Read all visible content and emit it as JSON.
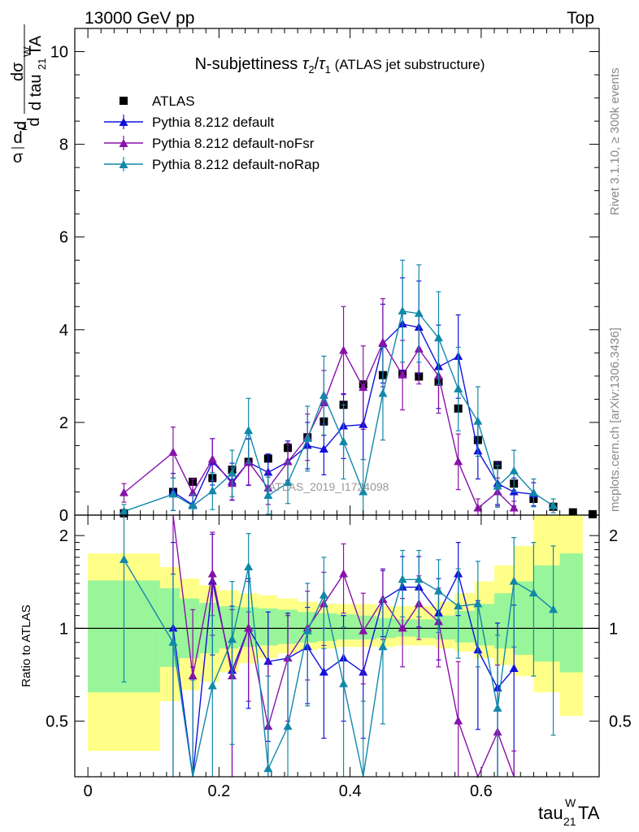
{
  "header": {
    "left": "13000 GeV pp",
    "right": "Top",
    "side_rivet": "Rivet 3.1.10, ≥ 300k events",
    "side_mcplots": "mcplots.cern.ch [arXiv:1306.3436]",
    "watermark": "ATLAS_2019_I1724098"
  },
  "chart_data": [
    {
      "panel": "main",
      "type": "scatter",
      "title": "N-subjettiness τ₂/τ₁ (ATLAS jet substructure)",
      "title_main": "N-subjettiness ",
      "title_suffix": " (ATLAS jet substructure)",
      "ylabel": "(1/σ) dσ/d tau21WTA",
      "xlabel": "tau21WTA",
      "xlim": [
        -0.02,
        0.78
      ],
      "ylim": [
        0,
        10.5
      ],
      "yticks": [
        "0",
        "2",
        "4",
        "6",
        "8",
        "10"
      ],
      "x": [
        0.055,
        0.13,
        0.16,
        0.19,
        0.22,
        0.245,
        0.275,
        0.305,
        0.335,
        0.36,
        0.39,
        0.42,
        0.45,
        0.48,
        0.505,
        0.535,
        0.565,
        0.595,
        0.625,
        0.65,
        0.68,
        0.71,
        0.74,
        0.77
      ],
      "series": [
        {
          "name": "ATLAS",
          "color": "#000000",
          "marker": "square",
          "values": [
            0.04,
            0.5,
            0.72,
            0.8,
            0.98,
            1.15,
            1.22,
            1.45,
            1.68,
            2.02,
            2.38,
            2.82,
            3.02,
            3.05,
            2.99,
            2.88,
            2.3,
            1.62,
            1.08,
            0.68,
            0.35,
            0.18,
            0.06,
            0.02
          ]
        },
        {
          "name": "Pythia 8.212 default",
          "color": "#1010dd",
          "marker": "triangle",
          "values": [
            null,
            0.5,
            0.22,
            1.15,
            0.72,
            1.14,
            0.92,
            1.15,
            1.5,
            1.42,
            1.92,
            1.95,
            3.7,
            4.12,
            4.05,
            3.2,
            3.42,
            1.38,
            0.68,
            0.5,
            0.45,
            null,
            null,
            null
          ],
          "errors": [
            null,
            0.4,
            0.25,
            0.5,
            0.4,
            0.5,
            0.4,
            0.45,
            0.5,
            0.55,
            0.7,
            0.75,
            0.85,
            1.0,
            1.0,
            0.9,
            0.9,
            0.6,
            0.45,
            0.3,
            0.25,
            null,
            null,
            null
          ]
        },
        {
          "name": "Pythia 8.212 default-noFsr",
          "color": "#8811aa",
          "marker": "triangle",
          "values": [
            0.48,
            1.35,
            0.48,
            1.2,
            0.68,
            1.15,
            0.58,
            1.15,
            1.68,
            2.42,
            3.55,
            2.75,
            3.72,
            3.02,
            3.58,
            3.0,
            1.15,
            0.15,
            0.5,
            0.15,
            null,
            null,
            null,
            null
          ],
          "errors": [
            0.2,
            0.55,
            0.3,
            0.45,
            0.35,
            0.5,
            0.35,
            0.4,
            0.5,
            0.7,
            0.95,
            0.9,
            0.95,
            0.75,
            0.75,
            0.8,
            0.6,
            0.2,
            0.3,
            0.15,
            null,
            null,
            null,
            null
          ]
        },
        {
          "name": "Pythia 8.212 default-noRap",
          "color": "#1188aa",
          "marker": "triangle",
          "values": [
            0.08,
            0.45,
            0.2,
            0.52,
            0.9,
            1.82,
            0.42,
            0.7,
            1.65,
            2.58,
            1.58,
            0.5,
            2.62,
            4.4,
            4.35,
            3.82,
            2.72,
            2.02,
            0.62,
            0.95,
            0.48,
            0.2,
            null,
            null
          ],
          "errors": [
            0.15,
            0.35,
            0.25,
            0.4,
            0.5,
            0.7,
            0.4,
            0.45,
            0.7,
            0.85,
            0.8,
            0.7,
            1.0,
            1.1,
            1.05,
            1.0,
            0.9,
            0.75,
            0.45,
            0.45,
            0.3,
            0.15,
            null,
            null
          ]
        }
      ]
    },
    {
      "panel": "ratio",
      "type": "line",
      "ylabel": "Ratio to ATLAS",
      "xlabel": "tau21WTA",
      "xlim": [
        -0.02,
        0.78
      ],
      "ylim": [
        0.33,
        2.33
      ],
      "yticks": [
        "0.5",
        "1",
        "2"
      ],
      "xticks": [
        "0",
        "0.2",
        "0.4",
        "0.6"
      ],
      "band_edges": [
        0.0,
        0.11,
        0.14,
        0.17,
        0.2,
        0.23,
        0.26,
        0.29,
        0.32,
        0.35,
        0.38,
        0.41,
        0.44,
        0.47,
        0.5,
        0.53,
        0.56,
        0.59,
        0.62,
        0.65,
        0.68,
        0.72,
        0.755
      ],
      "band_stat_low": [
        0.62,
        0.75,
        0.8,
        0.83,
        0.86,
        0.87,
        0.88,
        0.89,
        0.9,
        0.91,
        0.92,
        0.92,
        0.93,
        0.94,
        0.93,
        0.92,
        0.9,
        0.88,
        0.86,
        0.82,
        0.78,
        0.72
      ],
      "band_stat_high": [
        1.43,
        1.35,
        1.25,
        1.21,
        1.18,
        1.17,
        1.16,
        1.15,
        1.13,
        1.12,
        1.11,
        1.1,
        1.08,
        1.07,
        1.07,
        1.1,
        1.14,
        1.2,
        1.3,
        1.42,
        1.6,
        1.75
      ],
      "band_total_low": [
        0.4,
        0.58,
        0.63,
        0.67,
        0.72,
        0.77,
        0.8,
        0.83,
        0.85,
        0.86,
        0.87,
        0.87,
        0.87,
        0.88,
        0.88,
        0.86,
        0.84,
        0.8,
        0.76,
        0.7,
        0.62,
        0.52
      ],
      "band_total_high": [
        1.75,
        1.58,
        1.45,
        1.38,
        1.33,
        1.3,
        1.28,
        1.25,
        1.22,
        1.2,
        1.2,
        1.2,
        1.18,
        1.18,
        1.18,
        1.22,
        1.3,
        1.42,
        1.6,
        1.85,
        2.4,
        2.4
      ],
      "series": [
        {
          "name": "Pythia 8.212 default",
          "color": "#1010dd",
          "values": [
            null,
            1.0,
            0.3,
            1.42,
            0.73,
            1.0,
            0.78,
            0.8,
            0.87,
            0.72,
            0.8,
            0.72,
            1.24,
            1.36,
            1.36,
            1.12,
            1.5,
            0.85,
            0.64,
            0.74,
            null,
            null,
            null,
            null
          ],
          "errors": [
            null,
            0.9,
            0.45,
            0.6,
            0.45,
            0.45,
            0.35,
            0.32,
            0.3,
            0.28,
            0.3,
            0.28,
            0.3,
            0.35,
            0.35,
            0.33,
            0.4,
            0.38,
            0.4,
            0.45,
            null,
            null,
            null,
            null
          ]
        },
        {
          "name": "Pythia 8.212 default-noFsr",
          "color": "#8811aa",
          "values": [
            null,
            2.7,
            0.7,
            1.5,
            0.7,
            1.0,
            0.48,
            0.8,
            1.0,
            1.2,
            1.5,
            0.98,
            1.24,
            1.0,
            1.2,
            1.05,
            0.5,
            0.1,
            0.46,
            0.2,
            null,
            null,
            null,
            null
          ],
          "errors": [
            null,
            1.2,
            0.45,
            0.55,
            0.45,
            0.42,
            0.3,
            0.3,
            0.32,
            0.32,
            0.38,
            0.32,
            0.32,
            0.25,
            0.28,
            0.3,
            0.28,
            0.15,
            0.3,
            0.2,
            null,
            null,
            null,
            null
          ]
        },
        {
          "name": "Pythia 8.212 default-noRap",
          "color": "#1188aa",
          "values": [
            1.67,
            0.9,
            0.28,
            0.65,
            0.92,
            1.58,
            0.35,
            0.48,
            0.98,
            1.28,
            0.66,
            0.18,
            0.87,
            1.44,
            1.44,
            1.32,
            1.18,
            1.2,
            0.55,
            1.42,
            1.3,
            1.15,
            null,
            null
          ],
          "errors": [
            1.0,
            0.6,
            0.4,
            0.45,
            0.5,
            0.45,
            0.35,
            0.33,
            0.42,
            0.42,
            0.35,
            0.4,
            0.38,
            0.35,
            0.35,
            0.35,
            0.38,
            0.45,
            0.4,
            0.55,
            0.6,
            0.7,
            null,
            null
          ]
        }
      ]
    }
  ]
}
